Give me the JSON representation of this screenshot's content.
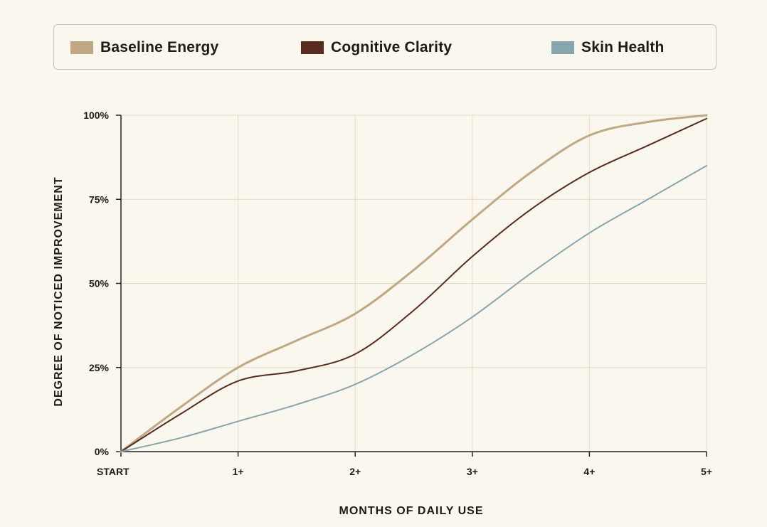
{
  "chart_data": {
    "type": "line",
    "xlabel": "MONTHS OF DAILY USE",
    "ylabel": "DEGREE OF NOTICED IMPROVEMENT",
    "x_ticks": [
      "START",
      "1+",
      "2+",
      "3+",
      "4+",
      "5+"
    ],
    "y_ticks": [
      "0%",
      "25%",
      "50%",
      "75%",
      "100%"
    ],
    "xlim": [
      0,
      5
    ],
    "ylim": [
      0,
      100
    ],
    "grid": true,
    "legend_position": "top",
    "x": [
      0,
      0.5,
      1,
      1.5,
      2,
      2.5,
      3,
      3.5,
      4,
      4.5,
      5
    ],
    "series": [
      {
        "name": "Baseline Energy",
        "color": "#c0a982",
        "values": [
          0,
          13,
          25,
          33,
          41,
          54,
          69,
          83,
          94,
          98,
          100
        ]
      },
      {
        "name": "Cognitive Clarity",
        "color": "#5a2a1e",
        "values": [
          0,
          11,
          21,
          24,
          29,
          42,
          58,
          72,
          83,
          91,
          99
        ]
      },
      {
        "name": "Skin Health",
        "color": "#86a6ad",
        "values": [
          0,
          4,
          9,
          14,
          20,
          29,
          40,
          53,
          65,
          75,
          85
        ]
      }
    ]
  }
}
